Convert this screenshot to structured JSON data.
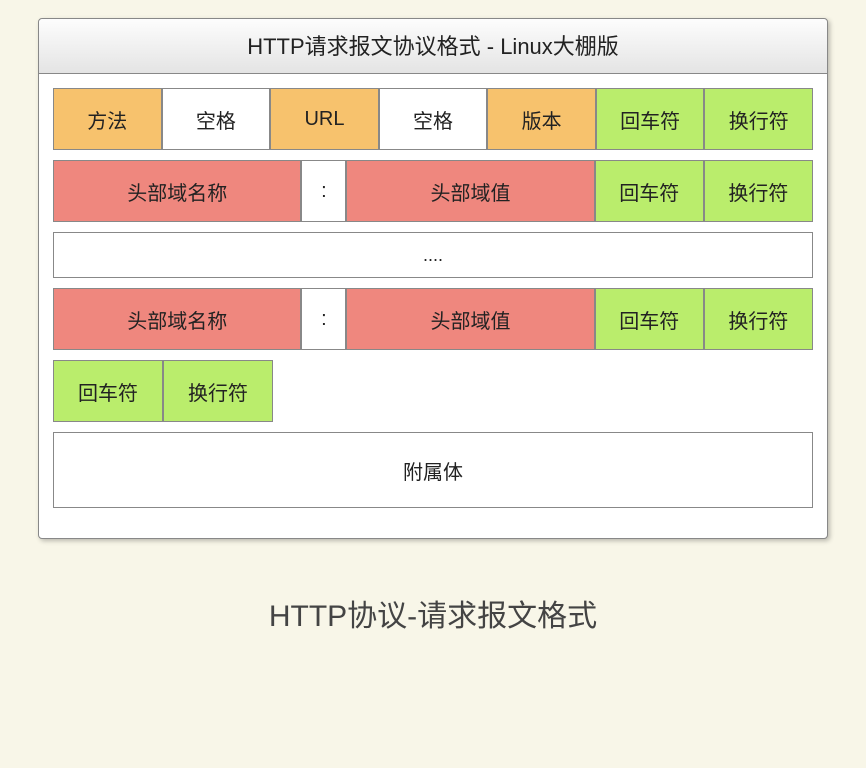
{
  "diagram": {
    "title": "HTTP请求报文协议格式 - Linux大棚版",
    "colors": {
      "orange": "#f7c26d",
      "white": "#ffffff",
      "green": "#baed6c",
      "red": "#ef877e",
      "border": "#888888",
      "page_bg": "#f8f6e8",
      "table_bg": "#ffffff"
    },
    "fonts": {
      "title_size": 22,
      "cell_size": 20,
      "caption_size": 30
    },
    "row1": {
      "method": {
        "label": "方法",
        "color": "orange",
        "flex": 1
      },
      "space1": {
        "label": "空格",
        "color": "white",
        "flex": 1
      },
      "url": {
        "label": "URL",
        "color": "orange",
        "flex": 1
      },
      "space2": {
        "label": "空格",
        "color": "white",
        "flex": 1
      },
      "version": {
        "label": "版本",
        "color": "orange",
        "flex": 1
      },
      "cr": {
        "label": "回车符",
        "color": "green",
        "flex": 1
      },
      "lf": {
        "label": "换行符",
        "color": "green",
        "flex": 1
      }
    },
    "row2": {
      "name": {
        "label": "头部域名称",
        "color": "red",
        "flex": 2.3
      },
      "colon": {
        "label": ":",
        "color": "white",
        "flex": 0.4
      },
      "value": {
        "label": "头部域值",
        "color": "red",
        "flex": 2.3
      },
      "cr": {
        "label": "回车符",
        "color": "green",
        "flex": 1
      },
      "lf": {
        "label": "换行符",
        "color": "green",
        "flex": 1
      }
    },
    "row3": {
      "dots": {
        "label": "....",
        "color": "white",
        "flex": 7
      }
    },
    "row4": {
      "name": {
        "label": "头部域名称",
        "color": "red",
        "flex": 2.3
      },
      "colon": {
        "label": ":",
        "color": "white",
        "flex": 0.4
      },
      "value": {
        "label": "头部域值",
        "color": "red",
        "flex": 2.3
      },
      "cr": {
        "label": "回车符",
        "color": "green",
        "flex": 1
      },
      "lf": {
        "label": "换行符",
        "color": "green",
        "flex": 1
      }
    },
    "row5": {
      "cr": {
        "label": "回车符",
        "color": "green",
        "flex": 1
      },
      "lf": {
        "label": "换行符",
        "color": "green",
        "flex": 1
      },
      "pad": {
        "flex": 5
      }
    },
    "row6": {
      "body": {
        "label": "附属体",
        "color": "white",
        "flex": 7
      }
    }
  },
  "caption": "HTTP协议-请求报文格式"
}
